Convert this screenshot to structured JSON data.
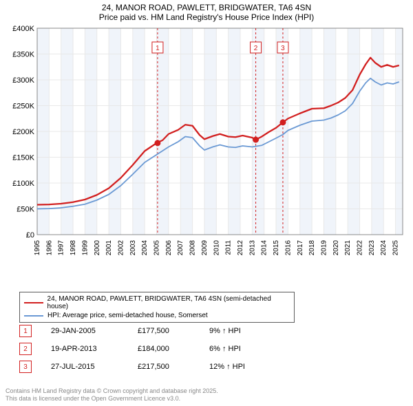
{
  "title": {
    "line1": "24, MANOR ROAD, PAWLETT, BRIDGWATER, TA6 4SN",
    "line2": "Price paid vs. HM Land Registry's House Price Index (HPI)"
  },
  "chart": {
    "type": "line",
    "ylabel_prefix": "£",
    "ylim": [
      0,
      400000
    ],
    "ytick_step": 50000,
    "yticks": [
      "£0",
      "£50K",
      "£100K",
      "£150K",
      "£200K",
      "£250K",
      "£300K",
      "£350K",
      "£400K"
    ],
    "xlim": [
      1995,
      2025.6
    ],
    "xticks": [
      1995,
      1996,
      1997,
      1998,
      1999,
      2000,
      2001,
      2002,
      2003,
      2004,
      2005,
      2006,
      2007,
      2008,
      2009,
      2010,
      2011,
      2012,
      2013,
      2014,
      2015,
      2016,
      2017,
      2018,
      2019,
      2020,
      2021,
      2022,
      2023,
      2024,
      2025
    ],
    "grid_color": "#e8e8e8",
    "plot_bg": "#ffffff",
    "shade_color": "#f0f4fa",
    "shade_bands": [
      [
        1995,
        1996
      ],
      [
        1997,
        1998
      ],
      [
        1999,
        2000
      ],
      [
        2001,
        2002
      ],
      [
        2003,
        2004
      ],
      [
        2005,
        2006
      ],
      [
        2007,
        2008
      ],
      [
        2009,
        2010
      ],
      [
        2011,
        2012
      ],
      [
        2013,
        2014
      ],
      [
        2015,
        2016
      ],
      [
        2017,
        2018
      ],
      [
        2019,
        2020
      ],
      [
        2021,
        2022
      ],
      [
        2023,
        2024
      ],
      [
        2025,
        2025.6
      ]
    ],
    "series": [
      {
        "name": "24, MANOR ROAD, PAWLETT, BRIDGWATER, TA6 4SN (semi-detached house)",
        "color": "#d21f1f",
        "line_width": 2.3,
        "data": [
          [
            1995,
            58000
          ],
          [
            1996,
            58500
          ],
          [
            1997,
            60000
          ],
          [
            1998,
            63000
          ],
          [
            1999,
            68000
          ],
          [
            2000,
            77000
          ],
          [
            2001,
            90000
          ],
          [
            2002,
            110000
          ],
          [
            2003,
            135000
          ],
          [
            2004,
            162000
          ],
          [
            2005,
            177500
          ],
          [
            2005.5,
            183000
          ],
          [
            2006,
            195000
          ],
          [
            2006.8,
            203000
          ],
          [
            2007.4,
            213000
          ],
          [
            2008,
            211000
          ],
          [
            2008.6,
            193000
          ],
          [
            2009,
            185000
          ],
          [
            2009.7,
            191000
          ],
          [
            2010.3,
            195000
          ],
          [
            2011,
            190000
          ],
          [
            2011.6,
            189000
          ],
          [
            2012.2,
            192000
          ],
          [
            2013,
            188000
          ],
          [
            2013.3,
            184000
          ],
          [
            2013.8,
            190000
          ],
          [
            2014.4,
            199000
          ],
          [
            2015,
            207000
          ],
          [
            2015.57,
            217500
          ],
          [
            2016,
            225000
          ],
          [
            2017,
            235000
          ],
          [
            2018,
            244000
          ],
          [
            2019,
            245000
          ],
          [
            2019.6,
            250000
          ],
          [
            2020.2,
            256000
          ],
          [
            2020.8,
            265000
          ],
          [
            2021.4,
            280000
          ],
          [
            2022,
            310000
          ],
          [
            2022.5,
            330000
          ],
          [
            2022.9,
            343000
          ],
          [
            2023.3,
            333000
          ],
          [
            2023.8,
            325000
          ],
          [
            2024.3,
            329000
          ],
          [
            2024.8,
            325000
          ],
          [
            2025.3,
            328000
          ]
        ]
      },
      {
        "name": "HPI: Average price, semi-detached house, Somerset",
        "color": "#6a99d4",
        "line_width": 1.8,
        "data": [
          [
            1995,
            50000
          ],
          [
            1996,
            50500
          ],
          [
            1997,
            52000
          ],
          [
            1998,
            55000
          ],
          [
            1999,
            59000
          ],
          [
            2000,
            67000
          ],
          [
            2001,
            78000
          ],
          [
            2002,
            95000
          ],
          [
            2003,
            117000
          ],
          [
            2004,
            140000
          ],
          [
            2005,
            155000
          ],
          [
            2006,
            170000
          ],
          [
            2006.8,
            180000
          ],
          [
            2007.4,
            190000
          ],
          [
            2008,
            188000
          ],
          [
            2008.6,
            172000
          ],
          [
            2009,
            164000
          ],
          [
            2009.7,
            170000
          ],
          [
            2010.3,
            174000
          ],
          [
            2011,
            170000
          ],
          [
            2011.6,
            169000
          ],
          [
            2012.2,
            172000
          ],
          [
            2013,
            170000
          ],
          [
            2013.8,
            173000
          ],
          [
            2014.4,
            180000
          ],
          [
            2015,
            187000
          ],
          [
            2015.57,
            194000
          ],
          [
            2016,
            202000
          ],
          [
            2017,
            212000
          ],
          [
            2018,
            220000
          ],
          [
            2019,
            222000
          ],
          [
            2019.6,
            226000
          ],
          [
            2020.2,
            232000
          ],
          [
            2020.8,
            240000
          ],
          [
            2021.4,
            254000
          ],
          [
            2022,
            278000
          ],
          [
            2022.5,
            294000
          ],
          [
            2022.9,
            303000
          ],
          [
            2023.3,
            296000
          ],
          [
            2023.8,
            290000
          ],
          [
            2024.3,
            294000
          ],
          [
            2024.8,
            292000
          ],
          [
            2025.3,
            296000
          ]
        ]
      }
    ],
    "markers": [
      {
        "label": "1",
        "x": 2005.08,
        "y": 177500,
        "color": "#d21f1f",
        "dash_color": "#d21f1f"
      },
      {
        "label": "2",
        "x": 2013.3,
        "y": 184000,
        "color": "#d21f1f",
        "dash_color": "#d21f1f"
      },
      {
        "label": "3",
        "x": 2015.57,
        "y": 217500,
        "color": "#d21f1f",
        "dash_color": "#d21f1f"
      }
    ]
  },
  "legend": {
    "item1_label": "24, MANOR ROAD, PAWLETT, BRIDGWATER, TA6 4SN (semi-detached house)",
    "item1_color": "#d21f1f",
    "item2_label": "HPI: Average price, semi-detached house, Somerset",
    "item2_color": "#6a99d4"
  },
  "sales": [
    {
      "badge": "1",
      "badge_color": "#d21f1f",
      "date": "29-JAN-2005",
      "price": "£177,500",
      "pct": "9% ↑ HPI"
    },
    {
      "badge": "2",
      "badge_color": "#d21f1f",
      "date": "19-APR-2013",
      "price": "£184,000",
      "pct": "6% ↑ HPI"
    },
    {
      "badge": "3",
      "badge_color": "#d21f1f",
      "date": "27-JUL-2015",
      "price": "£217,500",
      "pct": "12% ↑ HPI"
    }
  ],
  "footnote": {
    "line1": "Contains HM Land Registry data © Crown copyright and database right 2025.",
    "line2": "This data is licensed under the Open Government Licence v3.0."
  }
}
